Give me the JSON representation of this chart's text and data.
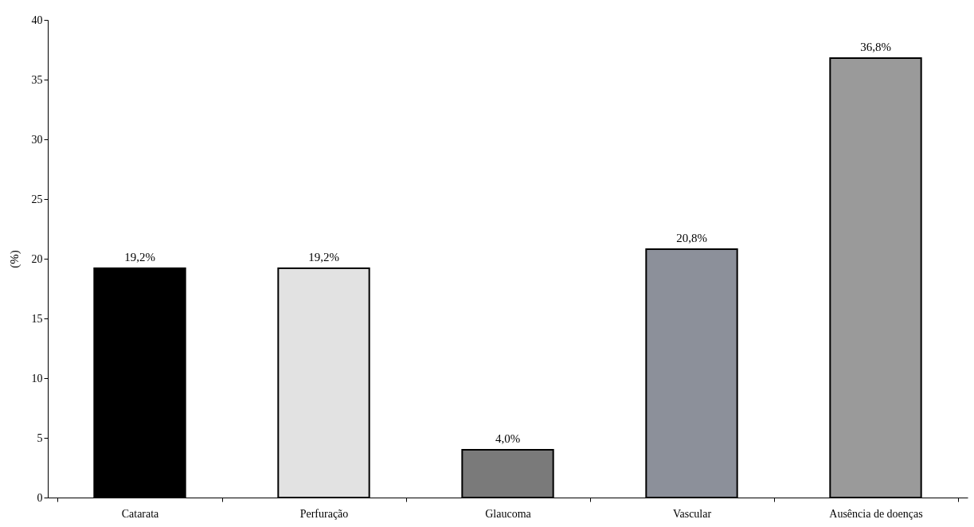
{
  "chart_data": {
    "type": "bar",
    "ylabel": "(%)",
    "categories": [
      "Catarata",
      "Perfuração",
      "Glaucoma",
      "Vascular",
      "Ausência de doenças"
    ],
    "values": [
      19.2,
      19.2,
      4.0,
      20.8,
      36.8
    ],
    "colors": [
      "#000000",
      "#e2e2e2",
      "#7a7a7a",
      "#8c909a",
      "#9a9a9a"
    ],
    "value_labels": [
      "19,2%",
      "19,2%",
      "4,0%",
      "20,8%",
      "36,8%"
    ],
    "ylim": [
      0,
      40
    ],
    "yticks": [
      0,
      5,
      10,
      15,
      20,
      25,
      30,
      35,
      40
    ],
    "grid": false
  }
}
